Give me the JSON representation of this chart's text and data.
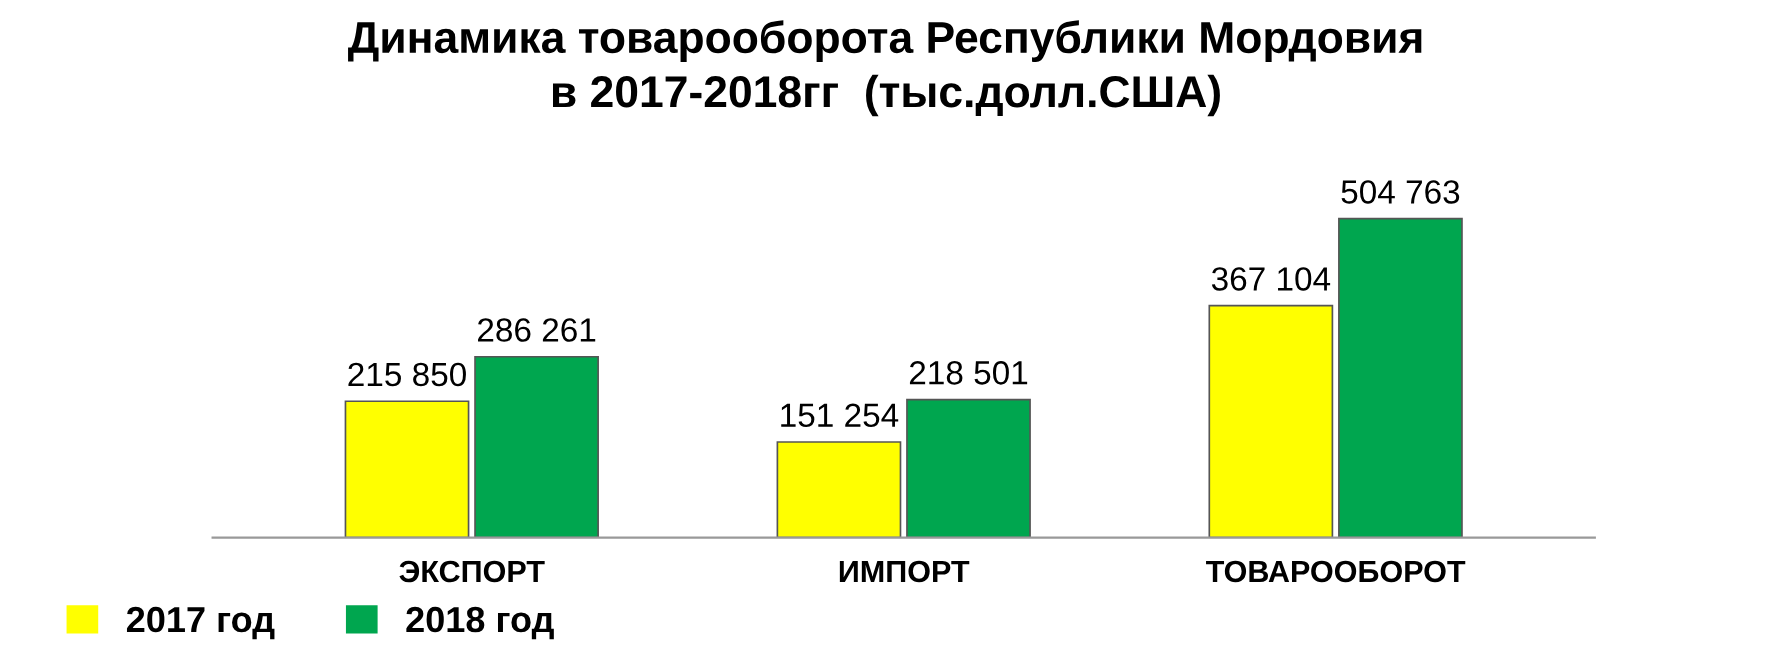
{
  "chart_data": {
    "type": "bar",
    "title": "Динамика товарооборота Республики Мордовия\nв 2017-2018гг  (тыс.долл.США)",
    "categories": [
      "ЭКСПОРТ",
      "ИМПОРТ",
      "ТОВАРООБОРОТ"
    ],
    "tick_labels": "x",
    "legend": "bottom left",
    "series": [
      {
        "name": "2017 год",
        "color": "#ffff00",
        "values": [
          215850,
          151254,
          367104
        ],
        "value_labels": [
          "215 850",
          "151 254",
          "367 104"
        ]
      },
      {
        "name": "2018 год",
        "color": "#00a64f",
        "values": [
          286261,
          218501,
          504763
        ],
        "value_labels": [
          "286 261",
          "218 501",
          "504 763"
        ]
      }
    ]
  }
}
